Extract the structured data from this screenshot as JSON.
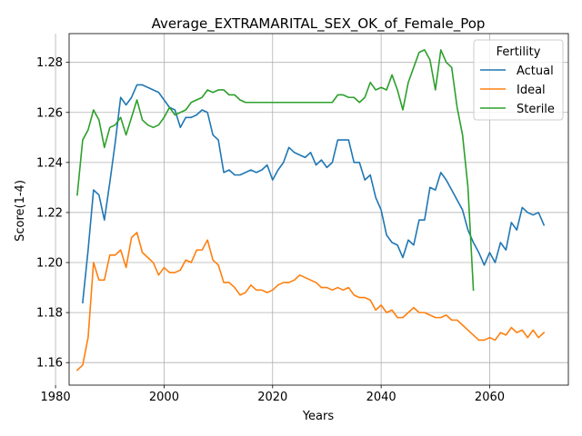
{
  "chart_data": {
    "type": "line",
    "title": "Average_EXTRAMARITAL_SEX_OK_of_Female_Pop",
    "xlabel": "Years",
    "ylabel": "Score(1-4)",
    "xlim": [
      1982.5,
      2074.5
    ],
    "ylim": [
      1.151,
      1.2915
    ],
    "x_ticks": [
      1980,
      2000,
      2020,
      2040,
      2060
    ],
    "x_tick_labels": [
      "1980",
      "2000",
      "2020",
      "2040",
      "2060"
    ],
    "y_ticks": [
      1.16,
      1.18,
      1.2,
      1.22,
      1.24,
      1.26,
      1.28
    ],
    "y_tick_labels": [
      "1.16",
      "1.18",
      "1.20",
      "1.22",
      "1.24",
      "1.26",
      "1.28"
    ],
    "grid": true,
    "legend": {
      "title": "Fertility",
      "placement": "top-right"
    },
    "series": [
      {
        "name": "Actual",
        "color": "#1f77b4",
        "x": [
          1985,
          1986,
          1987,
          1988,
          1989,
          1990,
          1991,
          1992,
          1993,
          1994,
          1995,
          1996,
          1997,
          1998,
          1999,
          2000,
          2001,
          2002,
          2003,
          2004,
          2005,
          2006,
          2007,
          2008,
          2009,
          2010,
          2011,
          2012,
          2013,
          2014,
          2015,
          2016,
          2017,
          2018,
          2019,
          2020,
          2021,
          2022,
          2023,
          2024,
          2025,
          2026,
          2027,
          2028,
          2029,
          2030,
          2031,
          2032,
          2033,
          2034,
          2035,
          2036,
          2037,
          2038,
          2039,
          2040,
          2041,
          2042,
          2043,
          2044,
          2045,
          2046,
          2047,
          2048,
          2049,
          2050,
          2051,
          2052,
          2053,
          2054,
          2055,
          2056,
          2057,
          2058,
          2059,
          2060,
          2061,
          2062,
          2063,
          2064,
          2065,
          2066,
          2067,
          2068,
          2069,
          2070
        ],
        "values": [
          1.184,
          1.205,
          1.229,
          1.227,
          1.217,
          1.232,
          1.248,
          1.266,
          1.263,
          1.266,
          1.271,
          1.271,
          1.27,
          1.269,
          1.268,
          1.265,
          1.262,
          1.261,
          1.254,
          1.258,
          1.258,
          1.259,
          1.261,
          1.26,
          1.251,
          1.249,
          1.236,
          1.237,
          1.235,
          1.235,
          1.236,
          1.237,
          1.236,
          1.237,
          1.239,
          1.233,
          1.237,
          1.24,
          1.246,
          1.244,
          1.243,
          1.242,
          1.244,
          1.239,
          1.241,
          1.238,
          1.24,
          1.249,
          1.249,
          1.249,
          1.24,
          1.24,
          1.233,
          1.235,
          1.226,
          1.221,
          1.211,
          1.208,
          1.207,
          1.202,
          1.209,
          1.207,
          1.217,
          1.217,
          1.23,
          1.229,
          1.236,
          1.233,
          1.229,
          1.225,
          1.221,
          1.213,
          1.208,
          1.204,
          1.199,
          1.204,
          1.2,
          1.208,
          1.205,
          1.216,
          1.213,
          1.222,
          1.22,
          1.219,
          1.22,
          1.215
        ]
      },
      {
        "name": "Ideal",
        "color": "#ff7f0e",
        "x": [
          1984,
          1985,
          1986,
          1987,
          1988,
          1989,
          1990,
          1991,
          1992,
          1993,
          1994,
          1995,
          1996,
          1997,
          1998,
          1999,
          2000,
          2001,
          2002,
          2003,
          2004,
          2005,
          2006,
          2007,
          2008,
          2009,
          2010,
          2011,
          2012,
          2013,
          2014,
          2015,
          2016,
          2017,
          2018,
          2019,
          2020,
          2021,
          2022,
          2023,
          2024,
          2025,
          2026,
          2027,
          2028,
          2029,
          2030,
          2031,
          2032,
          2033,
          2034,
          2035,
          2036,
          2037,
          2038,
          2039,
          2040,
          2041,
          2042,
          2043,
          2044,
          2045,
          2046,
          2047,
          2048,
          2049,
          2050,
          2051,
          2052,
          2053,
          2054,
          2055,
          2056,
          2057,
          2058,
          2059,
          2060,
          2061,
          2062,
          2063,
          2064,
          2065,
          2066,
          2067,
          2068,
          2069,
          2070
        ],
        "values": [
          1.157,
          1.159,
          1.17,
          1.2,
          1.193,
          1.193,
          1.203,
          1.203,
          1.205,
          1.198,
          1.21,
          1.212,
          1.204,
          1.202,
          1.2,
          1.195,
          1.198,
          1.196,
          1.196,
          1.197,
          1.201,
          1.2,
          1.205,
          1.205,
          1.209,
          1.201,
          1.199,
          1.192,
          1.192,
          1.19,
          1.187,
          1.188,
          1.191,
          1.189,
          1.189,
          1.188,
          1.189,
          1.191,
          1.192,
          1.192,
          1.193,
          1.195,
          1.194,
          1.193,
          1.192,
          1.19,
          1.19,
          1.189,
          1.19,
          1.189,
          1.19,
          1.187,
          1.186,
          1.186,
          1.185,
          1.181,
          1.183,
          1.18,
          1.181,
          1.178,
          1.178,
          1.18,
          1.182,
          1.18,
          1.18,
          1.179,
          1.178,
          1.178,
          1.179,
          1.177,
          1.177,
          1.175,
          1.173,
          1.171,
          1.169,
          1.169,
          1.17,
          1.169,
          1.172,
          1.171,
          1.174,
          1.172,
          1.173,
          1.17,
          1.173,
          1.17,
          1.172
        ]
      },
      {
        "name": "Sterile",
        "color": "#2ca02c",
        "x": [
          1984,
          1985,
          1986,
          1987,
          1988,
          1989,
          1990,
          1991,
          1992,
          1993,
          1994,
          1995,
          1996,
          1997,
          1998,
          1999,
          2000,
          2001,
          2002,
          2003,
          2004,
          2005,
          2006,
          2007,
          2008,
          2009,
          2010,
          2011,
          2012,
          2013,
          2014,
          2015,
          2016,
          2017,
          2018,
          2019,
          2020,
          2021,
          2022,
          2023,
          2024,
          2025,
          2026,
          2027,
          2028,
          2029,
          2030,
          2031,
          2032,
          2033,
          2034,
          2035,
          2036,
          2037,
          2038,
          2039,
          2040,
          2041,
          2042,
          2043,
          2044,
          2045,
          2046,
          2047,
          2048,
          2049,
          2050,
          2051,
          2052,
          2053,
          2054,
          2055,
          2056,
          2057
        ],
        "values": [
          1.227,
          1.249,
          1.253,
          1.261,
          1.257,
          1.246,
          1.254,
          1.255,
          1.258,
          1.251,
          1.258,
          1.265,
          1.257,
          1.255,
          1.254,
          1.255,
          1.258,
          1.262,
          1.259,
          1.26,
          1.261,
          1.264,
          1.265,
          1.266,
          1.269,
          1.268,
          1.269,
          1.269,
          1.267,
          1.267,
          1.265,
          1.264,
          1.264,
          1.264,
          1.264,
          1.264,
          1.264,
          1.264,
          1.264,
          1.264,
          1.264,
          1.264,
          1.264,
          1.264,
          1.264,
          1.264,
          1.264,
          1.264,
          1.267,
          1.267,
          1.266,
          1.266,
          1.264,
          1.266,
          1.272,
          1.269,
          1.27,
          1.269,
          1.275,
          1.269,
          1.261,
          1.272,
          1.278,
          1.284,
          1.285,
          1.281,
          1.269,
          1.285,
          1.28,
          1.278,
          1.262,
          1.251,
          1.23,
          1.189
        ]
      }
    ]
  }
}
